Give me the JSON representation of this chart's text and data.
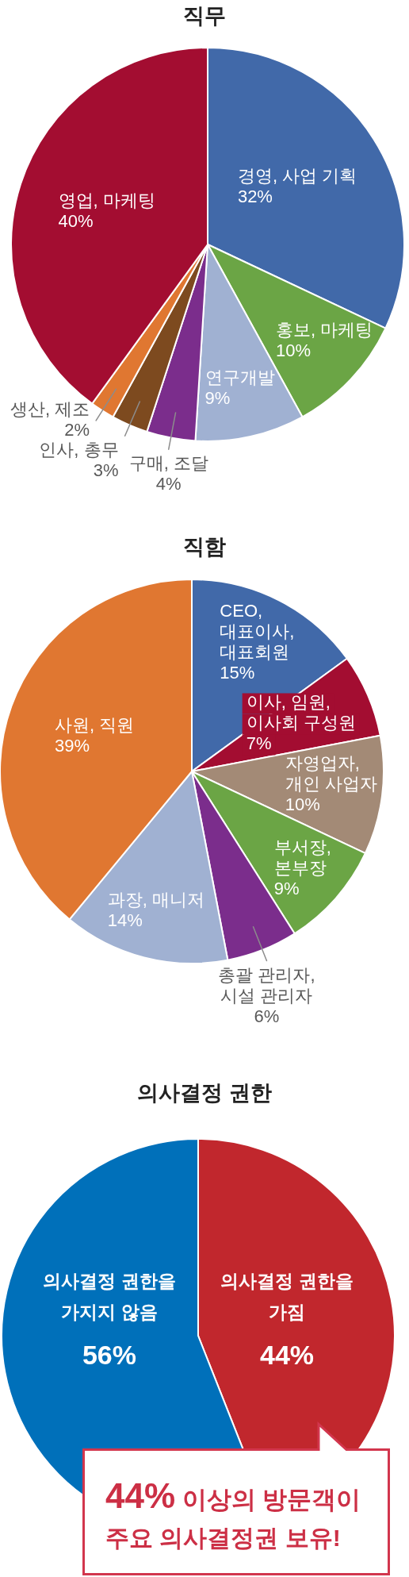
{
  "chart_data": [
    {
      "type": "pie",
      "title": "직무",
      "categories": [
        "경영, 사업 기획",
        "홍보, 마케팅",
        "연구개발",
        "구매, 조달",
        "인사, 총무",
        "생산, 제조",
        "영업, 마케팅"
      ],
      "values": [
        32,
        10,
        9,
        4,
        3,
        2,
        40
      ],
      "value_labels": [
        "32%",
        "10%",
        "9%",
        "4%",
        "3%",
        "2%",
        "40%"
      ],
      "colors": [
        "#4169a9",
        "#6ba545",
        "#a0b1d2",
        "#7b2d8c",
        "#7d4a1f",
        "#e07731",
        "#a30d31"
      ]
    },
    {
      "type": "pie",
      "title": "직함",
      "categories": [
        "CEO, 대표이사, 대표회원",
        "이사, 임원, 이사회 구성원",
        "자영업자, 개인 사업자",
        "부서장, 본부장",
        "총괄 관리자, 시설 관리자",
        "과장, 매니저",
        "사원, 직원"
      ],
      "values": [
        15,
        7,
        10,
        9,
        6,
        14,
        39
      ],
      "value_labels": [
        "15%",
        "7%",
        "10%",
        "9%",
        "6%",
        "14%",
        "39%"
      ],
      "colors": [
        "#4169a9",
        "#a30d31",
        "#a38a76",
        "#6ba545",
        "#7b2d8c",
        "#a0b1d2",
        "#e07731"
      ]
    },
    {
      "type": "pie",
      "title": "의사결정 권한",
      "categories": [
        "의사결정 권한을 가짐",
        "의사결정 권한을 가지지 않음"
      ],
      "values": [
        44,
        56
      ],
      "value_labels": [
        "44%",
        "56%"
      ],
      "colors": [
        "#c1272d",
        "#0070ba"
      ],
      "annotations": [
        "44% 이상의 방문객이",
        "주요 의사결정권 보유!"
      ]
    }
  ]
}
